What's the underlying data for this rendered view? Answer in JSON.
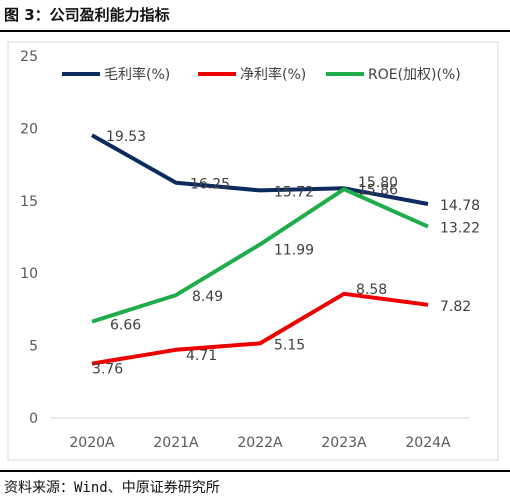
{
  "figure": {
    "title": "图 3：公司盈利能力指标",
    "source": "资料来源：Wind、中原证券研究所"
  },
  "chart_data": {
    "type": "line",
    "categories": [
      "2020A",
      "2021A",
      "2022A",
      "2023A",
      "2024A"
    ],
    "ylim": [
      0,
      25
    ],
    "yticks": [
      0,
      5,
      10,
      15,
      20,
      25
    ],
    "grid": false,
    "legend": "top-left",
    "series": [
      {
        "name": "毛利率(%)",
        "color": "#0c2c5e",
        "values": [
          19.53,
          16.25,
          15.72,
          15.86,
          14.78
        ]
      },
      {
        "name": "净利率(%)",
        "color": "#ee0000",
        "values": [
          3.76,
          4.71,
          5.15,
          8.58,
          7.82
        ]
      },
      {
        "name": "ROE(加权)(%)",
        "color": "#1fac4b",
        "values": [
          6.66,
          8.49,
          11.99,
          15.8,
          13.22
        ]
      }
    ]
  }
}
